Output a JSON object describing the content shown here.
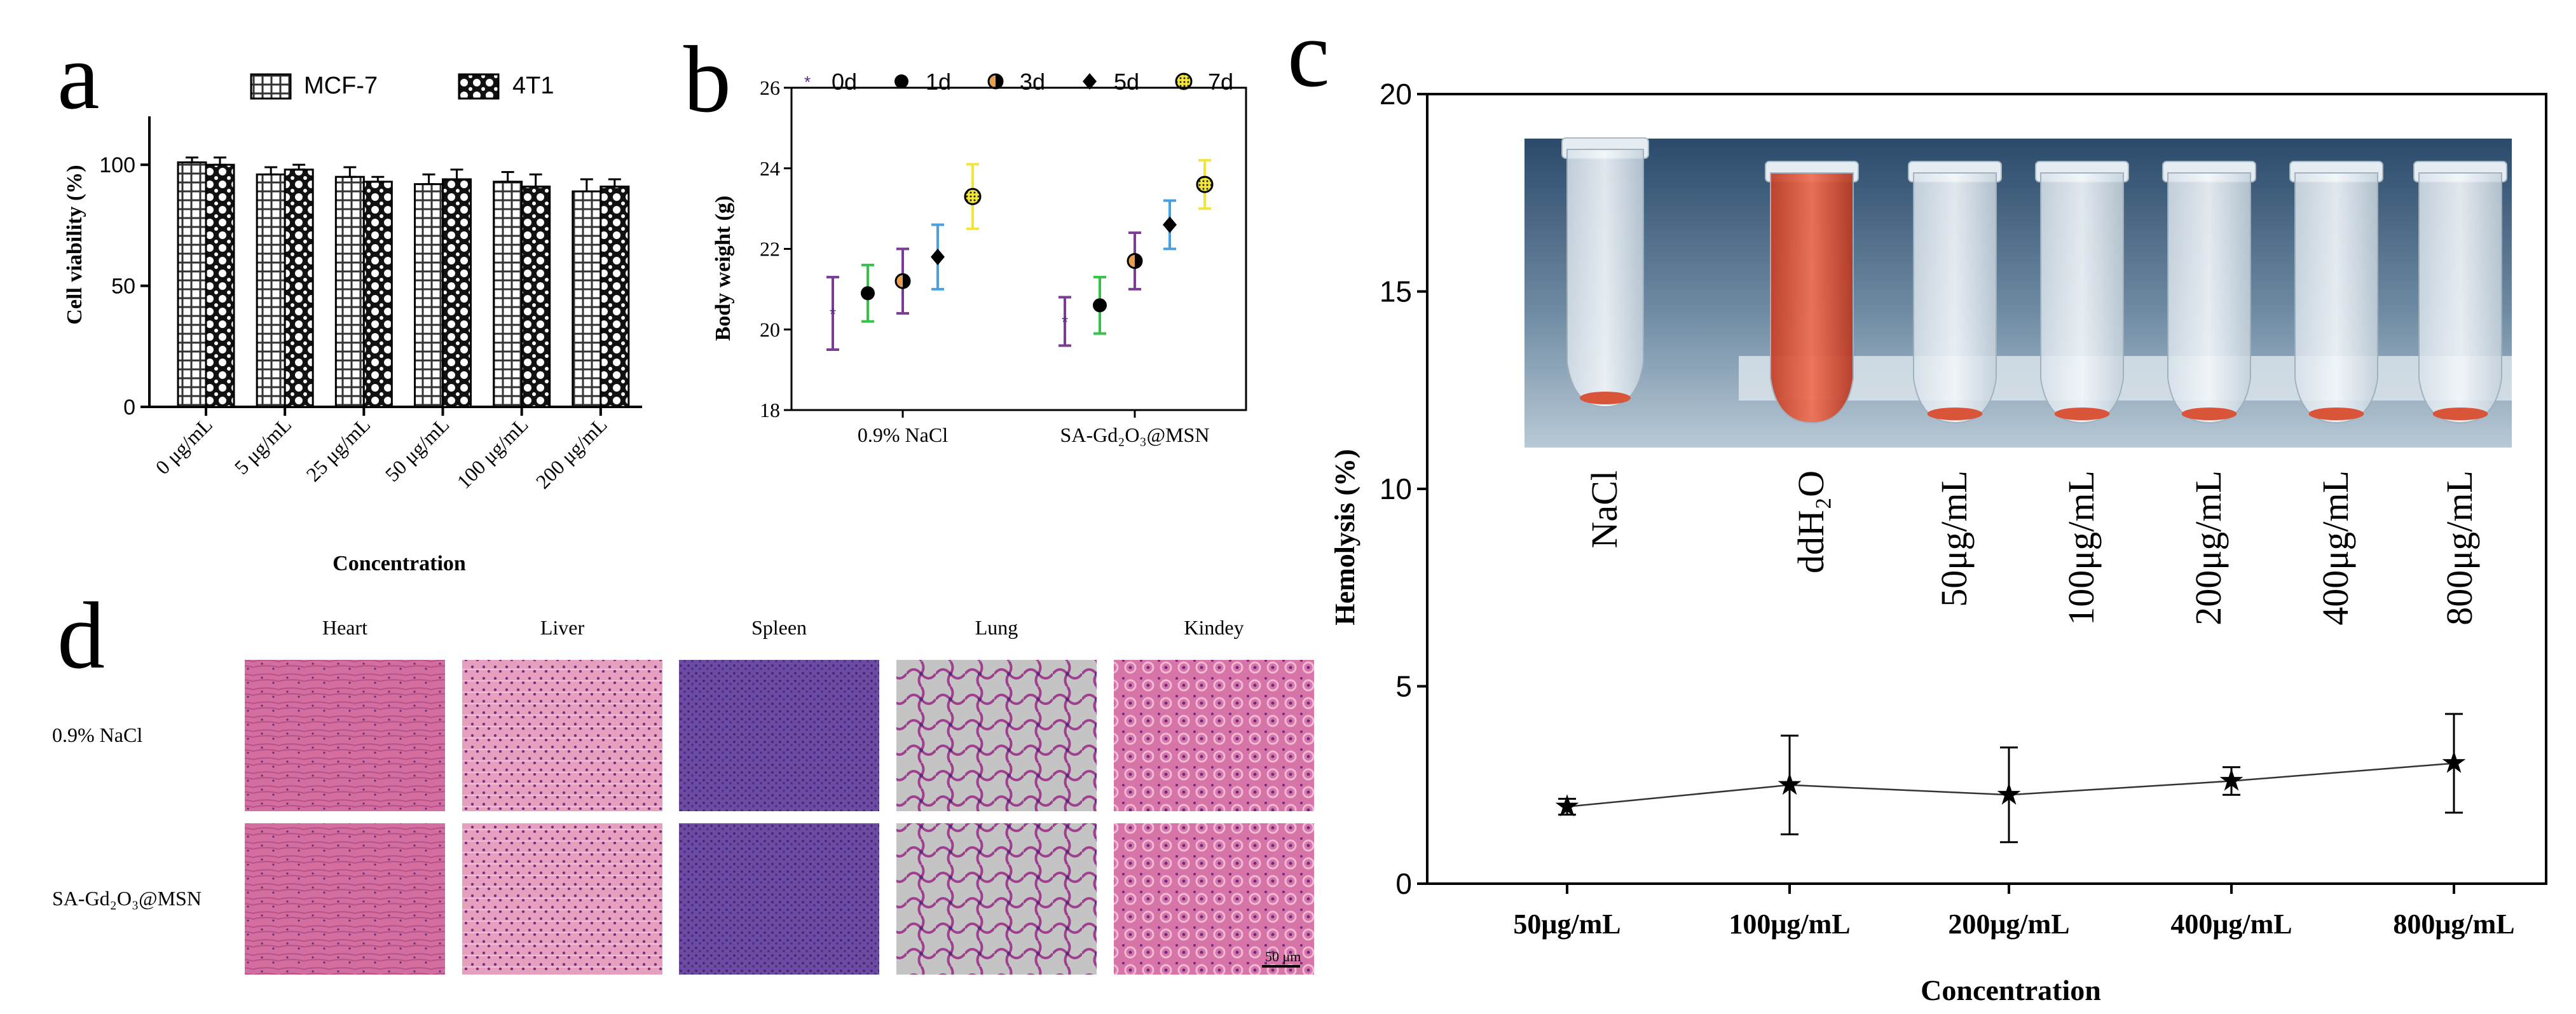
{
  "figure_labels": {
    "a": "a",
    "b": "b",
    "c": "c",
    "d": "d"
  },
  "colors": {
    "axis": "#000000",
    "bar_face": "#ffffff",
    "tissue_he": "#c7629c",
    "tissue_dense": "#6d4aa0",
    "lung_bg": "#c8c8c8",
    "blood": "#d9553a"
  },
  "chart_data": [
    {
      "panel": "a",
      "type": "bar",
      "title": "",
      "xlabel": "Concentration",
      "ylabel": "Cell viability (%)",
      "ylim": [
        0,
        120
      ],
      "yticks": [
        0,
        50,
        100
      ],
      "grid": false,
      "legend_position": "top",
      "categories": [
        "0 μg/mL",
        "5 μg/mL",
        "25 μg/mL",
        "50 μg/mL",
        "100 μg/mL",
        "200 μg/mL"
      ],
      "series": [
        {
          "name": "MCF-7",
          "pattern": "grid-hatch",
          "values": [
            101,
            96,
            95,
            92,
            93,
            89
          ],
          "errors": [
            2,
            3,
            4,
            4,
            4,
            5
          ]
        },
        {
          "name": "4T1",
          "pattern": "crosshatch",
          "values": [
            100,
            98,
            93,
            94,
            91,
            91
          ],
          "errors": [
            3,
            2,
            2,
            4,
            5,
            3
          ]
        }
      ]
    },
    {
      "panel": "b",
      "type": "scatter",
      "title": "",
      "xlabel": "",
      "ylabel": "Body weight (g)",
      "ylim": [
        18,
        26
      ],
      "yticks": [
        18,
        20,
        22,
        24,
        26
      ],
      "grid": false,
      "legend_position": "top",
      "groups": [
        "0.9% NaCl",
        "SA-Gd₂O₃@MSN"
      ],
      "series": [
        {
          "name": "0d",
          "marker": "small-star",
          "error_color": "#7a3d96",
          "values": [
            20.4,
            20.2
          ],
          "errors": [
            0.9,
            0.6
          ]
        },
        {
          "name": "1d",
          "marker": "filled-circle",
          "error_color": "#35c24a",
          "values": [
            20.9,
            20.6
          ],
          "errors": [
            0.7,
            0.7
          ]
        },
        {
          "name": "3d",
          "marker": "half-circle",
          "error_color": "#7a3d96",
          "values": [
            21.2,
            21.7
          ],
          "errors": [
            0.8,
            0.7
          ]
        },
        {
          "name": "5d",
          "marker": "diamond",
          "error_color": "#4a9fe0",
          "values": [
            21.8,
            22.6
          ],
          "errors": [
            0.8,
            0.6
          ]
        },
        {
          "name": "7d",
          "marker": "dotted-circle",
          "error_color": "#f2e63a",
          "values": [
            23.3,
            23.6
          ],
          "errors": [
            0.8,
            0.6
          ]
        }
      ]
    },
    {
      "panel": "c",
      "type": "line",
      "title": "",
      "xlabel": "Concentration",
      "ylabel": "Hemolysis (%)",
      "ylim": [
        0,
        20
      ],
      "yticks": [
        0,
        5,
        10,
        15,
        20
      ],
      "grid": false,
      "categories": [
        "50μg/mL",
        "100μg/mL",
        "200μg/mL",
        "400μg/mL",
        "800μg/mL"
      ],
      "series": [
        {
          "name": "Hemolysis",
          "marker": "star",
          "values": [
            1.95,
            2.5,
            2.25,
            2.6,
            3.05
          ],
          "errors": [
            0.2,
            1.25,
            1.2,
            0.35,
            1.25
          ]
        }
      ],
      "inset_photo": {
        "tube_labels": [
          "NaCl",
          "ddH₂O",
          "50μg/mL",
          "100μg/mL",
          "200μg/mL",
          "400μg/mL",
          "800μg/mL"
        ]
      }
    }
  ],
  "histology": {
    "columns": [
      "Heart",
      "Liver",
      "Spleen",
      "Lung",
      "Kindey"
    ],
    "rows": [
      "0.9% NaCl",
      "SA-Gd₂O₃@MSN"
    ],
    "scale_bar": "50 μm"
  }
}
